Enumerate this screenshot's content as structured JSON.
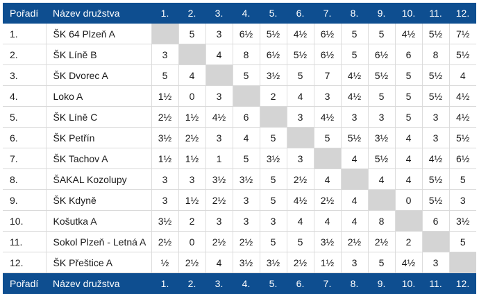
{
  "table": {
    "header": {
      "rank": "Pořadí",
      "name": "Název družstva",
      "cols": [
        "1.",
        "2.",
        "3.",
        "4.",
        "5.",
        "6.",
        "7.",
        "8.",
        "9.",
        "10.",
        "11.",
        "12."
      ]
    },
    "rows": [
      {
        "rank": "1.",
        "name": "ŠK 64 Plzeň A",
        "scores": [
          "",
          "5",
          "3",
          "6½",
          "5½",
          "4½",
          "6½",
          "5",
          "5",
          "4½",
          "5½",
          "7½"
        ]
      },
      {
        "rank": "2.",
        "name": "ŠK Líně B",
        "scores": [
          "3",
          "",
          "4",
          "8",
          "6½",
          "5½",
          "6½",
          "5",
          "6½",
          "6",
          "8",
          "5½"
        ]
      },
      {
        "rank": "3.",
        "name": "ŠK Dvorec A",
        "scores": [
          "5",
          "4",
          "",
          "5",
          "3½",
          "5",
          "7",
          "4½",
          "5½",
          "5",
          "5½",
          "4"
        ]
      },
      {
        "rank": "4.",
        "name": "Loko A",
        "scores": [
          "1½",
          "0",
          "3",
          "",
          "2",
          "4",
          "3",
          "4½",
          "5",
          "5",
          "5½",
          "4½"
        ]
      },
      {
        "rank": "5.",
        "name": "ŠK Líně C",
        "scores": [
          "2½",
          "1½",
          "4½",
          "6",
          "",
          "3",
          "4½",
          "3",
          "3",
          "5",
          "3",
          "4½"
        ]
      },
      {
        "rank": "6.",
        "name": "ŠK Petřín",
        "scores": [
          "3½",
          "2½",
          "3",
          "4",
          "5",
          "",
          "5",
          "5½",
          "3½",
          "4",
          "3",
          "5½"
        ]
      },
      {
        "rank": "7.",
        "name": "ŠK Tachov A",
        "scores": [
          "1½",
          "1½",
          "1",
          "5",
          "3½",
          "3",
          "",
          "4",
          "5½",
          "4",
          "4½",
          "6½"
        ]
      },
      {
        "rank": "8.",
        "name": "ŠAKAL Kozolupy",
        "scores": [
          "3",
          "3",
          "3½",
          "3½",
          "5",
          "2½",
          "4",
          "",
          "4",
          "4",
          "5½",
          "5"
        ]
      },
      {
        "rank": "9.",
        "name": "ŠK Kdyně",
        "scores": [
          "3",
          "1½",
          "2½",
          "3",
          "5",
          "4½",
          "2½",
          "4",
          "",
          "0",
          "5½",
          "3"
        ]
      },
      {
        "rank": "10.",
        "name": "Košutka A",
        "scores": [
          "3½",
          "2",
          "3",
          "3",
          "3",
          "4",
          "4",
          "4",
          "8",
          "",
          "6",
          "3½"
        ]
      },
      {
        "rank": "11.",
        "name": "Sokol Plzeň - Letná A",
        "scores": [
          "2½",
          "0",
          "2½",
          "2½",
          "5",
          "5",
          "3½",
          "2½",
          "2½",
          "2",
          "",
          "5"
        ]
      },
      {
        "rank": "12.",
        "name": "ŠK Přeštice A",
        "scores": [
          "½",
          "2½",
          "4",
          "3½",
          "3½",
          "2½",
          "1½",
          "3",
          "5",
          "4½",
          "3",
          ""
        ]
      }
    ]
  }
}
